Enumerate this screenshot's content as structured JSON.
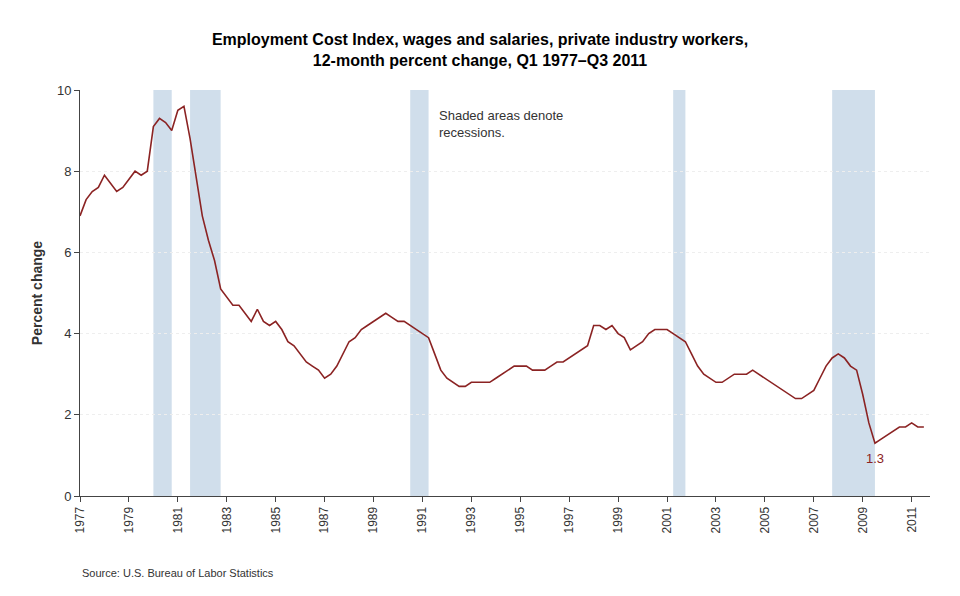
{
  "chart_data": {
    "type": "line",
    "title": "Employment Cost Index, wages and salaries, private industry workers,\n12-month percent change, Q1 1977–Q3 2011",
    "ylabel": "Percent change",
    "source": "Source: U.S. Bureau of Labor Statistics",
    "color": "#8B2323",
    "grid": "y",
    "xlim": [
      1977.0,
      2011.75
    ],
    "xticks": [
      1977,
      1979,
      1981,
      1983,
      1985,
      1987,
      1989,
      1991,
      1993,
      1995,
      1997,
      1999,
      2001,
      2003,
      2005,
      2007,
      2009,
      2011
    ],
    "ylim": [
      0,
      10
    ],
    "yticks": [
      0,
      2,
      4,
      6,
      8,
      10
    ],
    "recessions": [
      [
        1980.0,
        1980.75
      ],
      [
        1981.5,
        1982.75
      ],
      [
        1990.5,
        1991.25
      ],
      [
        2001.25,
        2001.75
      ],
      [
        2007.75,
        2009.5
      ]
    ],
    "recession_color": "#C8D8E8",
    "annotations": [
      {
        "text": "Shaded areas denote\nrecessions."
      },
      {
        "text": "1.3",
        "x": 2009.5,
        "y": 1.3,
        "color": "#8B2323"
      }
    ],
    "x": [
      1977.0,
      1977.25,
      1977.5,
      1977.75,
      1978.0,
      1978.25,
      1978.5,
      1978.75,
      1979.0,
      1979.25,
      1979.5,
      1979.75,
      1980.0,
      1980.25,
      1980.5,
      1980.75,
      1981.0,
      1981.25,
      1981.5,
      1981.75,
      1982.0,
      1982.25,
      1982.5,
      1982.75,
      1983.0,
      1983.25,
      1983.5,
      1983.75,
      1984.0,
      1984.25,
      1984.5,
      1984.75,
      1985.0,
      1985.25,
      1985.5,
      1985.75,
      1986.0,
      1986.25,
      1986.5,
      1986.75,
      1987.0,
      1987.25,
      1987.5,
      1987.75,
      1988.0,
      1988.25,
      1988.5,
      1988.75,
      1989.0,
      1989.25,
      1989.5,
      1989.75,
      1990.0,
      1990.25,
      1990.5,
      1990.75,
      1991.0,
      1991.25,
      1991.5,
      1991.75,
      1992.0,
      1992.25,
      1992.5,
      1992.75,
      1993.0,
      1993.25,
      1993.5,
      1993.75,
      1994.0,
      1994.25,
      1994.5,
      1994.75,
      1995.0,
      1995.25,
      1995.5,
      1995.75,
      1996.0,
      1996.25,
      1996.5,
      1996.75,
      1997.0,
      1997.25,
      1997.5,
      1997.75,
      1998.0,
      1998.25,
      1998.5,
      1998.75,
      1999.0,
      1999.25,
      1999.5,
      1999.75,
      2000.0,
      2000.25,
      2000.5,
      2000.75,
      2001.0,
      2001.25,
      2001.5,
      2001.75,
      2002.0,
      2002.25,
      2002.5,
      2002.75,
      2003.0,
      2003.25,
      2003.5,
      2003.75,
      2004.0,
      2004.25,
      2004.5,
      2004.75,
      2005.0,
      2005.25,
      2005.5,
      2005.75,
      2006.0,
      2006.25,
      2006.5,
      2006.75,
      2007.0,
      2007.25,
      2007.5,
      2007.75,
      2008.0,
      2008.25,
      2008.5,
      2008.75,
      2009.0,
      2009.25,
      2009.5,
      2009.75,
      2010.0,
      2010.25,
      2010.5,
      2010.75,
      2011.0,
      2011.25,
      2011.5
    ],
    "values": [
      6.9,
      7.3,
      7.5,
      7.6,
      7.9,
      7.7,
      7.5,
      7.6,
      7.8,
      8.0,
      7.9,
      8.0,
      9.1,
      9.3,
      9.2,
      9.0,
      9.5,
      9.6,
      8.8,
      7.8,
      6.9,
      6.3,
      5.8,
      5.1,
      4.9,
      4.7,
      4.7,
      4.5,
      4.3,
      4.6,
      4.3,
      4.2,
      4.3,
      4.1,
      3.8,
      3.7,
      3.5,
      3.3,
      3.2,
      3.1,
      2.9,
      3.0,
      3.2,
      3.5,
      3.8,
      3.9,
      4.1,
      4.2,
      4.3,
      4.4,
      4.5,
      4.4,
      4.3,
      4.3,
      4.2,
      4.1,
      4.0,
      3.9,
      3.5,
      3.1,
      2.9,
      2.8,
      2.7,
      2.7,
      2.8,
      2.8,
      2.8,
      2.8,
      2.9,
      3.0,
      3.1,
      3.2,
      3.2,
      3.2,
      3.1,
      3.1,
      3.1,
      3.2,
      3.3,
      3.3,
      3.4,
      3.5,
      3.6,
      3.7,
      4.2,
      4.2,
      4.1,
      4.2,
      4.0,
      3.9,
      3.6,
      3.7,
      3.8,
      4.0,
      4.1,
      4.1,
      4.1,
      4.0,
      3.9,
      3.8,
      3.5,
      3.2,
      3.0,
      2.9,
      2.8,
      2.8,
      2.9,
      3.0,
      3.0,
      3.0,
      3.1,
      3.0,
      2.9,
      2.8,
      2.7,
      2.6,
      2.5,
      2.4,
      2.4,
      2.5,
      2.6,
      2.9,
      3.2,
      3.4,
      3.5,
      3.4,
      3.2,
      3.1,
      2.5,
      1.8,
      1.3,
      1.4,
      1.5,
      1.6,
      1.7,
      1.7,
      1.8,
      1.7,
      1.7
    ]
  }
}
